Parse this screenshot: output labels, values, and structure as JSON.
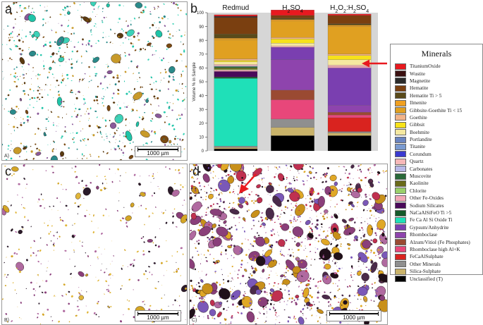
{
  "panels": [
    {
      "letter": "a",
      "corner": "A)",
      "scale": "1000 µm",
      "palette": [
        "#1fc4a8",
        "#3dd2b8",
        "#7a4a12",
        "#c89a2a",
        "#5a3a10",
        "#8a5a9a",
        "#2a8a8a"
      ]
    },
    {
      "letter": "c",
      "corner": "B)",
      "scale": "1000 µm",
      "palette": [
        "#d4a626",
        "#e0b63a",
        "#8a3f7a",
        "#b06aa0",
        "#2a1a2a"
      ]
    },
    {
      "letter": "d",
      "corner": "C)",
      "scale": "1000 µm",
      "palette": [
        "#e0a826",
        "#c8901a",
        "#8a3f7a",
        "#4a2a4a",
        "#b06aa0",
        "#7a58b8",
        "#20101a",
        "#c03050"
      ]
    }
  ],
  "chart_data": {
    "type": "bar",
    "panel_letter": "b",
    "stacked": true,
    "ylabel": "Volume % in Sample",
    "ylim": [
      0,
      100
    ],
    "yticks": [
      0,
      10,
      20,
      30,
      40,
      50,
      60,
      70,
      80,
      90,
      100
    ],
    "categories": [
      "Redmud",
      "H2SO4",
      "H2O2:H2SO4"
    ],
    "category_labels": [
      {
        "base": "Redmud",
        "sub": ""
      },
      {
        "base": "H",
        "sub": "2",
        "rest": "SO",
        "sub2": "4"
      },
      {
        "base": "H",
        "sub": "2",
        "rest": "O",
        "sub2": "2",
        "rest2": ":H",
        "sub3": "2",
        "rest3": "SO",
        "sub4": "4"
      }
    ],
    "series": [
      {
        "name": "Unclassified (T)",
        "color": "#000000",
        "values": [
          1.5,
          11,
          11
        ]
      },
      {
        "name": "Silica-Sulphate",
        "color": "#c9b36a",
        "values": [
          1,
          6,
          2
        ]
      },
      {
        "name": "Other Minerals",
        "color": "#8f8f8f",
        "values": [
          1,
          6,
          1
        ]
      },
      {
        "name": "FeCaAlSulphate",
        "color": "#d9231f",
        "values": [
          0,
          0,
          10
        ]
      },
      {
        "name": "Rhomboclase high Al+K",
        "color": "#e8477a",
        "values": [
          0,
          14,
          2
        ]
      },
      {
        "name": "Alzum/Vitiol (Fe Phosphates)",
        "color": "#9a4a32",
        "values": [
          0,
          7,
          2
        ]
      },
      {
        "name": "Rhomboclase",
        "color": "#8e44ad",
        "values": [
          0,
          22,
          5
        ]
      },
      {
        "name": "Gypsum/Anhydrite",
        "color": "#7a3fb0",
        "values": [
          0,
          9,
          27
        ]
      },
      {
        "name": "Fe Ca Al Si Oxide Ti",
        "color": "#1fe0b8",
        "values": [
          49,
          0,
          0
        ]
      },
      {
        "name": "NaCaAlSiFeO Ti >5",
        "color": "#155a2a",
        "values": [
          1,
          0,
          0
        ]
      },
      {
        "name": "Sodium Silicates",
        "color": "#4a0a5a",
        "values": [
          4,
          0,
          0
        ]
      },
      {
        "name": "Other Fe-Oxides",
        "color": "#f2a7b6",
        "values": [
          1,
          0,
          1
        ]
      },
      {
        "name": "Chlorite",
        "color": "#9ad06a",
        "values": [
          0.5,
          0,
          0
        ]
      },
      {
        "name": "Kaolinite",
        "color": "#6a6a1a",
        "values": [
          1,
          0,
          0
        ]
      },
      {
        "name": "Muscovite",
        "color": "#2a6a3a",
        "values": [
          1,
          0,
          0
        ]
      },
      {
        "name": "Carbonates",
        "color": "#b8b8e8",
        "values": [
          0.5,
          0,
          0
        ]
      },
      {
        "name": "Quartz",
        "color": "#f7b8b8",
        "values": [
          1,
          1,
          1
        ]
      },
      {
        "name": "Corundum",
        "color": "#3a3ad0",
        "values": [
          0,
          0,
          0
        ]
      },
      {
        "name": "Titanite",
        "color": "#7a9ad0",
        "values": [
          0,
          0,
          0
        ]
      },
      {
        "name": "Portlandite",
        "color": "#6a84c0",
        "values": [
          0,
          0,
          0
        ]
      },
      {
        "name": "Boehmite",
        "color": "#f5e8a0",
        "values": [
          2,
          2,
          4
        ]
      },
      {
        "name": "Gibbsit",
        "color": "#f7e21a",
        "values": [
          1,
          3,
          3
        ]
      },
      {
        "name": "Goethite",
        "color": "#f2b48a",
        "values": [
          1,
          1,
          1
        ]
      },
      {
        "name": "Gibbsite-Goethite Ti < 15",
        "color": "#e0a021",
        "values": [
          14,
          12,
          20
        ]
      },
      {
        "name": "Ilmenite",
        "color": "#f0a020",
        "values": [
          1,
          1,
          1
        ]
      },
      {
        "name": "Hematite Ti > 5",
        "color": "#5a4a1a",
        "values": [
          3,
          1,
          1
        ]
      },
      {
        "name": "Hematite",
        "color": "#7a3f10",
        "values": [
          12,
          2,
          6
        ]
      },
      {
        "name": "Magnetite",
        "color": "#2a2a2a",
        "values": [
          0.5,
          0,
          0
        ]
      },
      {
        "name": "Wustite",
        "color": "#3a1010",
        "values": [
          0.5,
          0,
          0
        ]
      },
      {
        "name": "TitaniumOxide",
        "color": "#e8191f",
        "values": [
          1,
          4,
          1
        ]
      }
    ]
  },
  "legend": {
    "title": "Minerals",
    "items": [
      {
        "label": "TitaniumOxide",
        "color": "#e8191f"
      },
      {
        "label": "Wustite",
        "color": "#3a1010"
      },
      {
        "label": "Magnetite",
        "color": "#2a2a2a"
      },
      {
        "label": "Hematite",
        "color": "#7a3f10"
      },
      {
        "label": "Hematite Ti > 5",
        "color": "#5a4a1a"
      },
      {
        "label": "Ilmenite",
        "color": "#f0a020"
      },
      {
        "label": "Gibbsite-Goethite Ti < 15",
        "color": "#e0a021"
      },
      {
        "label": "Goethite",
        "color": "#f2b48a"
      },
      {
        "label": "Gibbsit",
        "color": "#f7e21a"
      },
      {
        "label": "Boehmite",
        "color": "#f5e8a0"
      },
      {
        "label": "Portlandite",
        "color": "#6a84c0"
      },
      {
        "label": "Titanite",
        "color": "#7a9ad0"
      },
      {
        "label": "Corundum",
        "color": "#3a3ad0"
      },
      {
        "label": "Quartz",
        "color": "#f7b8b8"
      },
      {
        "label": "Carbonates",
        "color": "#b8b8e8"
      },
      {
        "label": "Muscovite",
        "color": "#2a6a3a"
      },
      {
        "label": "Kaolinite",
        "color": "#6a6a1a"
      },
      {
        "label": "Chlorite",
        "color": "#9ad06a"
      },
      {
        "label": "Other Fe-Oxides",
        "color": "#f2a7b6"
      },
      {
        "label": "Sodium Silicates",
        "color": "#4a0a5a"
      },
      {
        "label": "NaCaAlSiFeO Ti >5",
        "color": "#155a2a"
      },
      {
        "label": "Fe Ca Al Si Oxide Ti",
        "color": "#1fe0b8"
      },
      {
        "label": "Gypsum/Anhydrite",
        "color": "#7a3fb0"
      },
      {
        "label": "Rhomboclase",
        "color": "#8e44ad"
      },
      {
        "label": "Alzum/Vitiol (Fe Phosphates)",
        "color": "#9a4a32"
      },
      {
        "label": "Rhomboclase high Al+K",
        "color": "#e8477a"
      },
      {
        "label": "FeCaAlSulphate",
        "color": "#d9231f"
      },
      {
        "label": "Other Minerals",
        "color": "#8f8f8f"
      },
      {
        "label": "Silica-Sulphate",
        "color": "#c9b36a"
      },
      {
        "label": "Unclassified (T)",
        "color": "#000000"
      }
    ]
  },
  "arrow_color": "#e8191f"
}
